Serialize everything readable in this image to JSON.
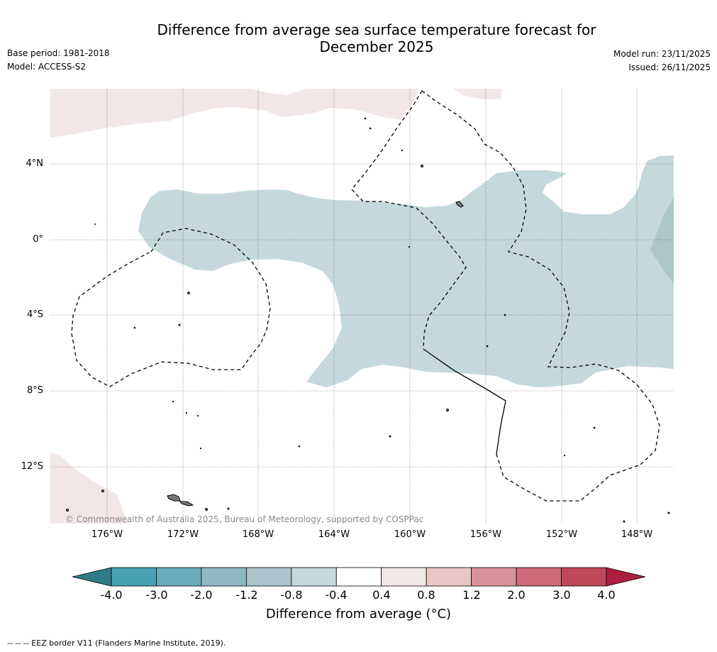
{
  "title": "Difference from average sea surface temperature forecast for\nDecember 2025",
  "base_period": "Base period: 1981-2018",
  "model": "Model: ACCESS-S2",
  "model_run": "Model run: 23/11/2025",
  "issued": "Issued: 26/11/2025",
  "copyright": "© Commonwealth of Australia 2025, Bureau of Meteorology, supported by COSPPac",
  "footnote": "--  --  -- EEZ border V11 (Flanders Marine Institute, 2019).",
  "map": {
    "lat_labels": [
      "4°N",
      "0°",
      "4°S",
      "8°S",
      "12°S"
    ],
    "lon_labels": [
      "176°W",
      "172°W",
      "168°W",
      "164°W",
      "160°W",
      "156°W",
      "152°W",
      "148°W"
    ]
  },
  "colorbar": {
    "title": "Difference from average (°C)",
    "ticks": [
      "-4.0",
      "-3.0",
      "-2.0",
      "-1.2",
      "-0.8",
      "-0.4",
      "0.4",
      "0.8",
      "1.2",
      "2.0",
      "3.0",
      "4.0"
    ],
    "colors": [
      "#48a1b3",
      "#6aacbb",
      "#8eb9c4",
      "#abc4cb",
      "#c5d8dc",
      "#ffffff",
      "#f3e6e6",
      "#e8c6c3",
      "#d99298",
      "#cc6b77",
      "#be4858"
    ],
    "under_color": "#2f7b86",
    "over_color": "#ac1f3e"
  },
  "legend": {
    "eez": "EEZ border"
  }
}
